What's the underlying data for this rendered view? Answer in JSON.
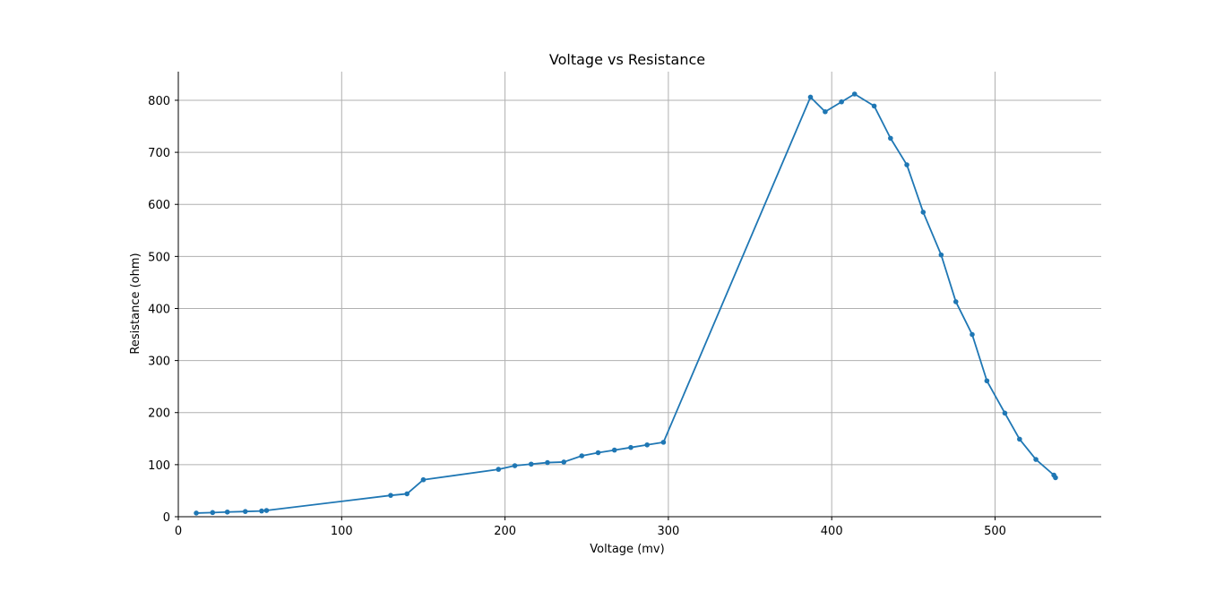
{
  "chart_data": {
    "type": "line",
    "title": "Voltage vs Resistance",
    "xlabel": "Voltage (mv)",
    "ylabel": "Resistance (ohm)",
    "xlim": [
      0,
      565
    ],
    "ylim": [
      0,
      855
    ],
    "xticks": [
      0,
      100,
      200,
      300,
      400,
      500
    ],
    "yticks": [
      0,
      100,
      200,
      300,
      400,
      500,
      600,
      700,
      800
    ],
    "grid": true,
    "color": "#1f77b4",
    "series": [
      {
        "x": [
          11,
          21,
          30,
          41,
          51,
          54,
          130,
          140,
          150,
          196,
          206,
          216,
          226,
          236,
          247,
          257,
          267,
          277,
          287,
          297,
          387,
          396,
          406,
          414,
          426,
          436,
          446,
          456,
          467,
          476,
          486,
          495,
          506,
          515,
          525,
          536,
          537
        ],
        "y": [
          7,
          8,
          9,
          10,
          11,
          12,
          41,
          44,
          71,
          91,
          98,
          101,
          104,
          105,
          117,
          123,
          128,
          133,
          138,
          143,
          806,
          778,
          797,
          812,
          789,
          727,
          676,
          585,
          503,
          413,
          350,
          261,
          199,
          149,
          110,
          80,
          75
        ]
      }
    ]
  }
}
